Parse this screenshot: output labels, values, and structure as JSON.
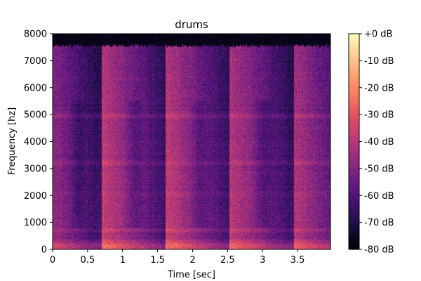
{
  "chart_data": {
    "type": "heatmap",
    "title": "drums",
    "xlabel": "Time [sec]",
    "ylabel": "Frequency [hz]",
    "xlim": [
      0,
      3.97
    ],
    "ylim": [
      0,
      8000
    ],
    "xticks": [
      0,
      0.5,
      1,
      1.5,
      2,
      2.5,
      3,
      3.5
    ],
    "xtick_labels": [
      "0",
      "0.5",
      "1",
      "1.5",
      "2",
      "2.5",
      "3",
      "3.5"
    ],
    "yticks": [
      0,
      1000,
      2000,
      3000,
      4000,
      5000,
      6000,
      7000,
      8000
    ],
    "ytick_labels": [
      "0",
      "1000",
      "2000",
      "3000",
      "4000",
      "5000",
      "6000",
      "7000",
      "8000"
    ],
    "colorbar": {
      "range": [
        -80,
        0
      ],
      "ticks": [
        0,
        -10,
        -20,
        -30,
        -40,
        -50,
        -60,
        -70,
        -80
      ],
      "tick_labels": [
        "+0 dB",
        "-10 dB",
        "-20 dB",
        "-30 dB",
        "-40 dB",
        "-50 dB",
        "-60 dB",
        "-70 dB",
        "-80 dB"
      ],
      "colormap": "magma",
      "colors": [
        "#000004",
        "#1d1147",
        "#51127c",
        "#822681",
        "#b73779",
        "#e75263",
        "#fc8961",
        "#fec287",
        "#fcfdbf"
      ]
    },
    "hits": [
      {
        "time": 0.0,
        "level": -45
      },
      {
        "time": 0.72,
        "level": -36
      },
      {
        "time": 1.63,
        "level": -36
      },
      {
        "time": 2.55,
        "level": -38
      },
      {
        "time": 3.47,
        "level": -40
      }
    ],
    "noise_floor_db": -62,
    "cutoff_hz": 7550,
    "bands_hz": [
      150,
      700,
      3200,
      4950
    ]
  }
}
